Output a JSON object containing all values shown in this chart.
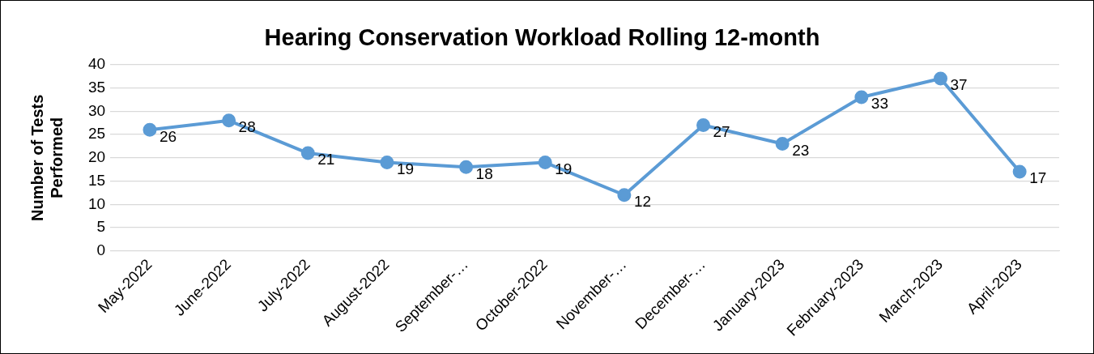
{
  "chart_data": {
    "type": "line",
    "title": "Hearing Conservation Workload Rolling 12-month",
    "ylabel": "Number of Tests Performed",
    "categories": [
      "May-2022",
      "June-2022",
      "July-2022",
      "August-2022",
      "September-…",
      "October-2022",
      "November-…",
      "December-…",
      "January-2023",
      "February-2023",
      "March-2023",
      "April-2023"
    ],
    "series": [
      {
        "color": "#5b9bd5",
        "values": [
          26,
          28,
          21,
          19,
          18,
          19,
          12,
          27,
          23,
          33,
          37,
          17
        ]
      }
    ],
    "ylim": [
      0,
      40
    ],
    "yticks": [
      0,
      5,
      10,
      15,
      20,
      25,
      30,
      35,
      40
    ],
    "grid": "y",
    "legend": false,
    "marker": "circle",
    "line_style": "solid",
    "data_labels": true
  }
}
